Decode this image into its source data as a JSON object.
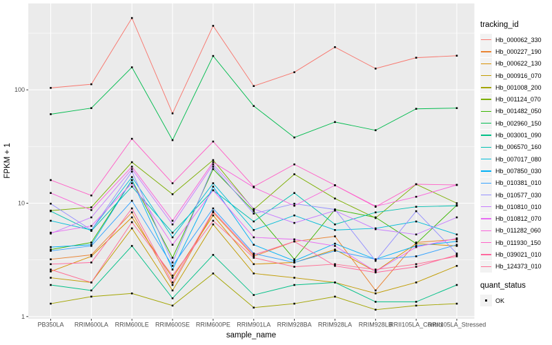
{
  "chart_data": {
    "type": "line",
    "xlabel": "sample_name",
    "ylabel": "FPKM + 1",
    "y_scale": "log10",
    "y_ticks": [
      1,
      10,
      100
    ],
    "y_minor_ticks": [
      3.1623,
      31.623,
      316.23
    ],
    "ylim": [
      1,
      570
    ],
    "grid": "on",
    "panel_bg": "#EBEBEB",
    "grid_color": "#FFFFFF",
    "tick_label_color": "#4D4D4D",
    "point_color": "#000000",
    "legend_position": "right",
    "legend_title": "tracking_id",
    "legend2_title": "quant_status",
    "legend2_items": [
      "OK"
    ],
    "categories": [
      "PB350LA",
      "RRIM600LA",
      "RRIM600LE",
      "RRIM600SE",
      "RRIM600PE",
      "RRIM901LA",
      "RRIM928BA",
      "RRIM928LA",
      "RRIM928LB",
      "RRII105LA_Control",
      "RRII105LA_Stressed"
    ],
    "series": [
      {
        "name": "Hb_000062_330",
        "color": "#F8766D",
        "values": [
          104,
          112,
          430,
          62,
          367,
          108,
          143,
          238,
          154,
          192,
          200
        ]
      },
      {
        "name": "Hb_000227_190",
        "color": "#EA8331",
        "values": [
          3.2,
          3.5,
          8.3,
          1.9,
          8.3,
          3.4,
          4.6,
          5.1,
          1.7,
          4.5,
          4.8
        ]
      },
      {
        "name": "Hb_000622_130",
        "color": "#D89000",
        "values": [
          2.5,
          3.4,
          7.5,
          2.2,
          7.8,
          2.9,
          3.0,
          3.9,
          2.5,
          4.4,
          4.2
        ]
      },
      {
        "name": "Hb_000916_070",
        "color": "#C09B00",
        "values": [
          2.2,
          2.0,
          6.0,
          1.7,
          6.5,
          2.4,
          2.2,
          2.0,
          1.6,
          2.0,
          2.8
        ]
      },
      {
        "name": "Hb_001008_200",
        "color": "#A3A500",
        "values": [
          1.3,
          1.5,
          1.6,
          1.25,
          2.4,
          1.2,
          1.3,
          1.5,
          1.15,
          1.25,
          1.3
        ]
      },
      {
        "name": "Hb_001124_070",
        "color": "#7CAE00",
        "values": [
          8.6,
          9.2,
          23,
          12,
          24,
          8.8,
          18,
          11,
          7.4,
          14.7,
          10
        ]
      },
      {
        "name": "Hb_001482_050",
        "color": "#39B600",
        "values": [
          3.9,
          4.5,
          16,
          3.3,
          20,
          8.5,
          3.2,
          8.8,
          7.5,
          4.4,
          9.6
        ]
      },
      {
        "name": "Hb_002960_150",
        "color": "#00BB4E",
        "values": [
          61,
          69,
          158,
          36,
          199,
          72,
          38,
          52,
          44,
          68,
          69
        ]
      },
      {
        "name": "Hb_003001_090",
        "color": "#00C087",
        "values": [
          1.9,
          1.7,
          4.2,
          1.45,
          3.5,
          1.55,
          1.9,
          2.0,
          1.35,
          1.35,
          1.9
        ]
      },
      {
        "name": "Hb_006570_160",
        "color": "#00C0B2",
        "values": [
          8.5,
          5.7,
          14,
          5.5,
          13,
          6.9,
          12.3,
          6.5,
          8.3,
          9.3,
          9.5
        ]
      },
      {
        "name": "Hb_007017_080",
        "color": "#00BCD8",
        "values": [
          7.0,
          5.8,
          17,
          5.0,
          15,
          5.8,
          7.8,
          5.8,
          6.0,
          6.9,
          5.3
        ]
      },
      {
        "name": "Hb_007850_030",
        "color": "#00B0F6",
        "values": [
          4.1,
          4.3,
          16,
          2.6,
          14,
          4.3,
          3.1,
          4.4,
          3.2,
          4.2,
          4.6
        ]
      },
      {
        "name": "Hb_010381_010",
        "color": "#35A2FF",
        "values": [
          3.8,
          4.2,
          10.5,
          2.8,
          9.0,
          3.6,
          3.0,
          3.8,
          3.2,
          3.4,
          4.3
        ]
      },
      {
        "name": "Hb_010577_030",
        "color": "#9590FF",
        "values": [
          9.9,
          5.8,
          19,
          3.0,
          21,
          8.1,
          9.9,
          8.8,
          3.1,
          8.5,
          3.6
        ]
      },
      {
        "name": "Hb_010810_010",
        "color": "#C77CFF",
        "values": [
          5.4,
          7.5,
          20,
          6.5,
          22,
          8.9,
          6.7,
          8.6,
          5.9,
          5.3,
          7.5
        ]
      },
      {
        "name": "Hb_010812_070",
        "color": "#E76BF3",
        "values": [
          5.5,
          6.3,
          15,
          4.3,
          13,
          5.0,
          4.8,
          4.2,
          2.5,
          4.1,
          4.9
        ]
      },
      {
        "name": "Hb_011282_060",
        "color": "#FA62DB",
        "values": [
          12.3,
          8.7,
          21,
          7.0,
          23,
          13.8,
          9.5,
          14.4,
          9.4,
          11.4,
          14.5
        ]
      },
      {
        "name": "Hb_011930_150",
        "color": "#FF61C7",
        "values": [
          16,
          11.7,
          37,
          15,
          35,
          14,
          22,
          14.4,
          9.3,
          14.7,
          14.5
        ]
      },
      {
        "name": "Hb_039021_010",
        "color": "#FF689E",
        "values": [
          2.9,
          3.0,
          9.0,
          2.0,
          8.5,
          3.5,
          4.6,
          2.8,
          2.45,
          2.75,
          3.5
        ]
      },
      {
        "name": "Hb_124373_010",
        "color": "#FF6C92",
        "values": [
          2.6,
          2.0,
          6.8,
          2.3,
          7.0,
          3.3,
          2.75,
          2.9,
          2.6,
          2.9,
          3.4
        ]
      }
    ]
  }
}
